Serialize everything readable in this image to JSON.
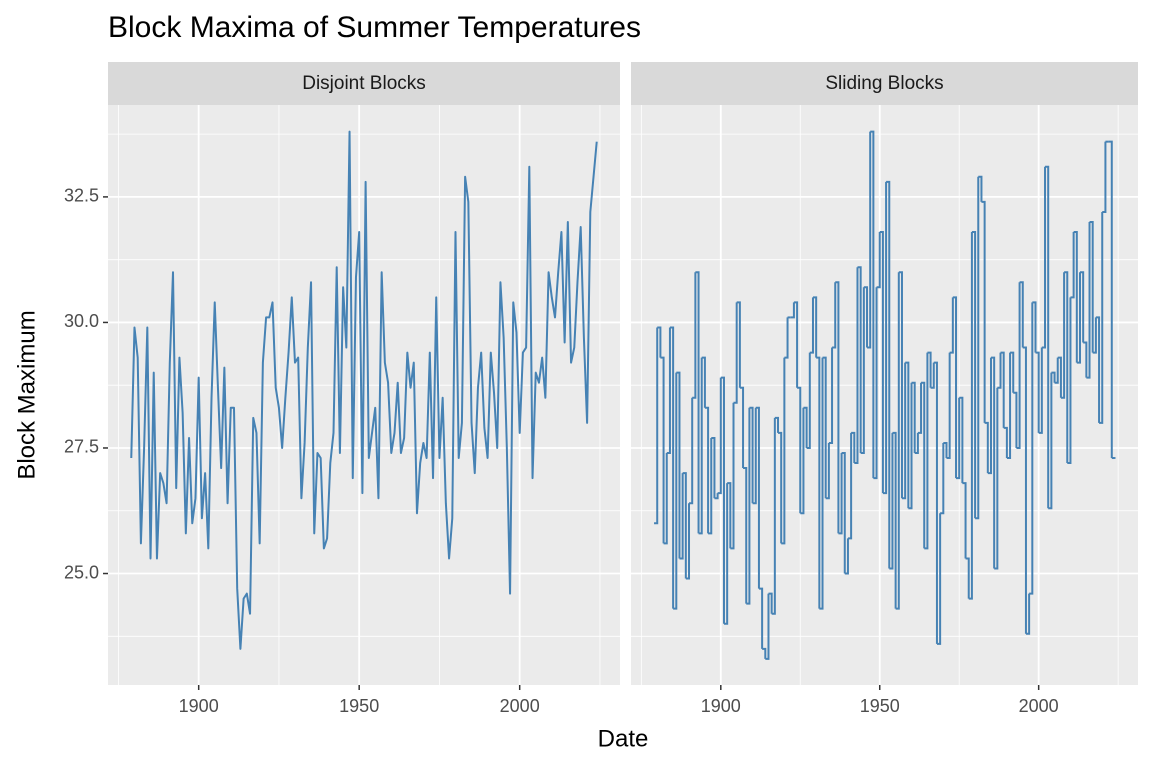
{
  "title": "Block Maxima of Summer Temperatures",
  "x_label": "Date",
  "y_label": "Block Maximum",
  "chart_data": [
    {
      "type": "line",
      "title": "Disjoint Blocks",
      "color": "#4682b4",
      "grid": true,
      "xlim": [
        1871.75,
        2031.25
      ],
      "xticks": [
        1900,
        1950,
        2000
      ],
      "ylim": [
        22.78,
        34.33
      ],
      "yticks": [
        {
          "value": 25,
          "label": "25.0"
        },
        27.5,
        {
          "value": 30,
          "label": "30.0"
        },
        32.5
      ],
      "x": [
        1879,
        1880,
        1881,
        1882,
        1883,
        1884,
        1885,
        1886,
        1887,
        1888,
        1889,
        1890,
        1891,
        1892,
        1893,
        1894,
        1895,
        1896,
        1897,
        1898,
        1899,
        1900,
        1901,
        1902,
        1903,
        1904,
        1905,
        1906,
        1907,
        1908,
        1909,
        1910,
        1911,
        1912,
        1913,
        1914,
        1915,
        1916,
        1917,
        1918,
        1919,
        1920,
        1921,
        1922,
        1923,
        1924,
        1925,
        1926,
        1927,
        1928,
        1929,
        1930,
        1931,
        1932,
        1933,
        1934,
        1935,
        1936,
        1937,
        1938,
        1939,
        1940,
        1941,
        1942,
        1943,
        1944,
        1945,
        1946,
        1947,
        1948,
        1949,
        1950,
        1951,
        1952,
        1953,
        1954,
        1955,
        1956,
        1957,
        1958,
        1959,
        1960,
        1961,
        1962,
        1963,
        1964,
        1965,
        1966,
        1967,
        1968,
        1969,
        1970,
        1971,
        1972,
        1973,
        1974,
        1975,
        1976,
        1977,
        1978,
        1979,
        1980,
        1981,
        1982,
        1983,
        1984,
        1985,
        1986,
        1987,
        1988,
        1989,
        1990,
        1991,
        1992,
        1993,
        1994,
        1995,
        1996,
        1997,
        1998,
        1999,
        2000,
        2001,
        2002,
        2003,
        2004,
        2005,
        2006,
        2007,
        2008,
        2009,
        2010,
        2011,
        2012,
        2013,
        2014,
        2015,
        2016,
        2017,
        2018,
        2019,
        2020,
        2021,
        2022,
        2023,
        2024
      ],
      "values": [
        27.3,
        29.9,
        29.3,
        25.6,
        27.5,
        29.9,
        25.3,
        29.0,
        25.3,
        27.0,
        26.8,
        26.4,
        29.2,
        31.0,
        26.7,
        29.3,
        28.2,
        25.8,
        27.7,
        26.0,
        26.5,
        28.9,
        26.1,
        27.0,
        25.5,
        28.5,
        30.4,
        28.7,
        27.1,
        29.1,
        26.4,
        28.3,
        28.3,
        24.7,
        23.5,
        24.5,
        24.6,
        24.2,
        28.1,
        27.8,
        25.6,
        29.2,
        30.1,
        30.1,
        30.4,
        28.7,
        28.3,
        27.5,
        28.5,
        29.4,
        30.5,
        29.2,
        29.3,
        26.5,
        27.6,
        29.5,
        30.8,
        25.8,
        27.4,
        27.3,
        25.5,
        25.7,
        27.2,
        27.8,
        31.1,
        27.4,
        30.7,
        29.5,
        33.8,
        26.9,
        30.9,
        31.8,
        26.6,
        32.8,
        27.3,
        27.8,
        28.3,
        26.5,
        31.0,
        29.2,
        28.8,
        27.4,
        27.8,
        28.8,
        27.4,
        27.7,
        29.4,
        28.7,
        29.2,
        26.2,
        27.2,
        27.6,
        27.3,
        29.4,
        26.9,
        30.5,
        27.3,
        28.5,
        26.4,
        25.3,
        26.1,
        31.8,
        27.3,
        28.0,
        32.9,
        32.4,
        28.0,
        27.0,
        28.7,
        29.4,
        27.9,
        27.3,
        29.4,
        28.6,
        27.5,
        30.8,
        29.7,
        27.5,
        24.6,
        30.4,
        29.8,
        27.8,
        29.4,
        29.5,
        33.1,
        26.9,
        29.0,
        28.8,
        29.3,
        28.5,
        31.0,
        30.5,
        30.1,
        31.0,
        31.8,
        29.6,
        32.0,
        29.2,
        29.5,
        30.8,
        31.9,
        29.7,
        28.0,
        32.2,
        32.9,
        33.6
      ]
    },
    {
      "type": "step",
      "title": "Sliding Blocks",
      "color": "#4682b4",
      "grid": true,
      "xlim": [
        1871.75,
        2031.25
      ],
      "xticks": [
        1900,
        1950,
        2000
      ],
      "ylim": [
        22.78,
        34.33
      ],
      "yticks": [
        25,
        27.5,
        30,
        32.5
      ],
      "x": [
        1879,
        1880,
        1881,
        1882,
        1883,
        1884,
        1885,
        1886,
        1887,
        1888,
        1889,
        1890,
        1891,
        1892,
        1893,
        1894,
        1895,
        1896,
        1897,
        1898,
        1899,
        1900,
        1901,
        1902,
        1903,
        1904,
        1905,
        1906,
        1907,
        1908,
        1909,
        1910,
        1911,
        1912,
        1913,
        1914,
        1915,
        1916,
        1917,
        1918,
        1919,
        1920,
        1921,
        1922,
        1923,
        1924,
        1925,
        1926,
        1927,
        1928,
        1929,
        1930,
        1931,
        1932,
        1933,
        1934,
        1935,
        1936,
        1937,
        1938,
        1939,
        1940,
        1941,
        1942,
        1943,
        1944,
        1945,
        1946,
        1947,
        1948,
        1949,
        1950,
        1951,
        1952,
        1953,
        1954,
        1955,
        1956,
        1957,
        1958,
        1959,
        1960,
        1961,
        1962,
        1963,
        1964,
        1965,
        1966,
        1967,
        1968,
        1969,
        1970,
        1971,
        1972,
        1973,
        1974,
        1975,
        1976,
        1977,
        1978,
        1979,
        1980,
        1981,
        1982,
        1983,
        1984,
        1985,
        1986,
        1987,
        1988,
        1989,
        1990,
        1991,
        1992,
        1993,
        1994,
        1995,
        1996,
        1997,
        1998,
        1999,
        2000,
        2001,
        2002,
        2003,
        2004,
        2005,
        2006,
        2007,
        2008,
        2009,
        2010,
        2011,
        2012,
        2013,
        2014,
        2015,
        2016,
        2017,
        2018,
        2019,
        2020,
        2021,
        2022,
        2023,
        2024
      ],
      "values": [
        26.0,
        29.9,
        29.3,
        25.6,
        27.4,
        29.9,
        24.3,
        29.0,
        25.3,
        27.0,
        24.9,
        26.4,
        28.5,
        31.0,
        25.8,
        29.3,
        28.3,
        25.8,
        27.7,
        26.5,
        26.6,
        28.9,
        24.0,
        26.8,
        25.5,
        28.4,
        30.4,
        28.7,
        27.1,
        24.4,
        28.3,
        26.4,
        28.3,
        24.7,
        23.5,
        23.3,
        24.6,
        24.2,
        28.1,
        27.8,
        25.6,
        29.3,
        30.1,
        30.1,
        30.4,
        28.7,
        26.2,
        28.3,
        27.5,
        29.4,
        30.5,
        29.3,
        24.3,
        29.3,
        26.5,
        27.6,
        29.5,
        30.8,
        25.8,
        27.4,
        25.0,
        25.7,
        27.8,
        27.2,
        31.1,
        27.4,
        30.7,
        29.5,
        33.8,
        26.9,
        30.7,
        31.8,
        26.6,
        32.8,
        25.1,
        27.8,
        24.3,
        31.0,
        26.5,
        29.2,
        26.3,
        28.8,
        27.4,
        27.8,
        28.8,
        25.5,
        29.4,
        28.7,
        29.2,
        23.6,
        26.2,
        27.6,
        27.3,
        29.4,
        30.5,
        26.9,
        28.5,
        26.8,
        25.3,
        24.5,
        31.8,
        26.1,
        32.9,
        32.4,
        28.0,
        27.0,
        29.3,
        25.1,
        28.7,
        29.4,
        27.9,
        27.3,
        29.4,
        28.6,
        27.5,
        30.8,
        29.5,
        23.8,
        24.6,
        30.4,
        29.4,
        27.8,
        29.5,
        33.1,
        26.3,
        29.0,
        28.8,
        29.3,
        28.5,
        31.0,
        27.2,
        30.5,
        31.8,
        29.2,
        31.0,
        29.6,
        28.9,
        32.0,
        29.4,
        30.1,
        28.0,
        32.2,
        33.6,
        33.6,
        27.3,
        27.3
      ]
    }
  ]
}
